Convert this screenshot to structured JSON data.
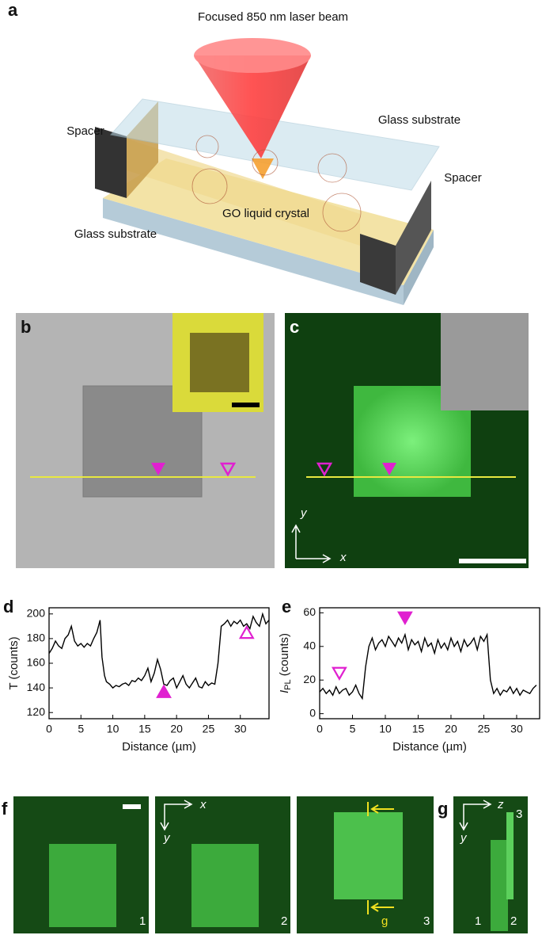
{
  "panels": {
    "a": "a",
    "b": "b",
    "c": "c",
    "d": "d",
    "e": "e",
    "f": "f",
    "g": "g"
  },
  "diagram": {
    "title": "Focused 850 nm laser beam",
    "spacer_left": "Spacer",
    "spacer_right": "Spacer",
    "glass_top": "Glass substrate",
    "glass_bottom": "Glass substrate",
    "crystal": "GO liquid crystal"
  },
  "axes_c": {
    "y": "y",
    "x": "x"
  },
  "axes_f": {
    "x": "x",
    "y": "y"
  },
  "axes_g": {
    "z": "z",
    "y": "y"
  },
  "frames_f": [
    "1",
    "2",
    "3"
  ],
  "frames_g": [
    "1",
    "2",
    "3"
  ],
  "cut_label": "g",
  "chart_data": [
    {
      "type": "line",
      "xlabel": "Distance (µm)",
      "ylabel": "T (counts)",
      "color": "#000000",
      "x": [
        0,
        0.5,
        1,
        1.5,
        2,
        2.5,
        3,
        3.5,
        4,
        4.5,
        5,
        5.5,
        6,
        6.5,
        7,
        7.5,
        8,
        8.3,
        8.7,
        9,
        9.5,
        10,
        10.5,
        11,
        11.5,
        12,
        12.5,
        13,
        13.5,
        14,
        14.5,
        15,
        15.5,
        16,
        16.5,
        17,
        17.5,
        18,
        18.5,
        19,
        19.5,
        20,
        20.5,
        21,
        21.5,
        22,
        22.5,
        23,
        23.5,
        24,
        24.5,
        25,
        25.5,
        26,
        26.5,
        27,
        27.5,
        28,
        28.5,
        29,
        29.5,
        30,
        30.5,
        31,
        31.5,
        32,
        32.5,
        33,
        33.5,
        34,
        34.5
      ],
      "values": [
        168,
        172,
        178,
        174,
        172,
        180,
        183,
        190,
        178,
        174,
        176,
        173,
        176,
        174,
        180,
        185,
        195,
        165,
        150,
        145,
        143,
        140,
        142,
        141,
        143,
        144,
        142,
        146,
        145,
        148,
        146,
        150,
        156,
        145,
        152,
        163,
        155,
        143,
        142,
        146,
        148,
        140,
        145,
        150,
        143,
        140,
        144,
        148,
        141,
        140,
        145,
        142,
        144,
        143,
        160,
        190,
        192,
        195,
        190,
        194,
        192,
        195,
        190,
        192,
        188,
        198,
        193,
        190,
        200,
        192,
        195
      ],
      "xlim": [
        0,
        34.5
      ],
      "ylim": [
        115,
        205
      ],
      "xticks": [
        0,
        5,
        10,
        15,
        20,
        25,
        30
      ],
      "yticks": [
        120,
        140,
        160,
        180,
        200
      ]
    },
    {
      "type": "line",
      "xlabel": "Distance (µm)",
      "ylabel": "I",
      "ylabel_sub": "PL",
      "ylabel_unit": " (counts)",
      "color": "#000000",
      "x": [
        0,
        0.5,
        1,
        1.5,
        2,
        2.5,
        3,
        3.5,
        4,
        4.5,
        5,
        5.5,
        6,
        6.5,
        7,
        7.5,
        8,
        8.5,
        9,
        9.5,
        10,
        10.5,
        11,
        11.5,
        12,
        12.5,
        13,
        13.5,
        14,
        14.5,
        15,
        15.5,
        16,
        16.5,
        17,
        17.5,
        18,
        18.5,
        19,
        19.5,
        20,
        20.5,
        21,
        21.5,
        22,
        22.5,
        23,
        23.5,
        24,
        24.5,
        25,
        25.5,
        26,
        26.5,
        27,
        27.5,
        28,
        28.5,
        29,
        29.5,
        30,
        30.5,
        31,
        31.5,
        32,
        32.5,
        33
      ],
      "values": [
        13,
        15,
        12,
        14,
        11,
        16,
        12,
        14,
        15,
        11,
        13,
        17,
        12,
        9,
        28,
        40,
        45,
        38,
        42,
        44,
        40,
        46,
        43,
        40,
        45,
        42,
        47,
        38,
        44,
        41,
        43,
        37,
        45,
        40,
        42,
        36,
        44,
        39,
        42,
        38,
        45,
        40,
        43,
        37,
        44,
        40,
        42,
        45,
        38,
        46,
        43,
        47,
        20,
        12,
        15,
        11,
        14,
        13,
        16,
        12,
        15,
        11,
        14,
        13,
        12,
        15,
        17
      ],
      "xlim": [
        0,
        33.5
      ],
      "ylim": [
        -3,
        63
      ],
      "xticks": [
        0,
        5,
        10,
        15,
        20,
        25,
        30
      ],
      "yticks": [
        0,
        20,
        40,
        60
      ]
    }
  ]
}
